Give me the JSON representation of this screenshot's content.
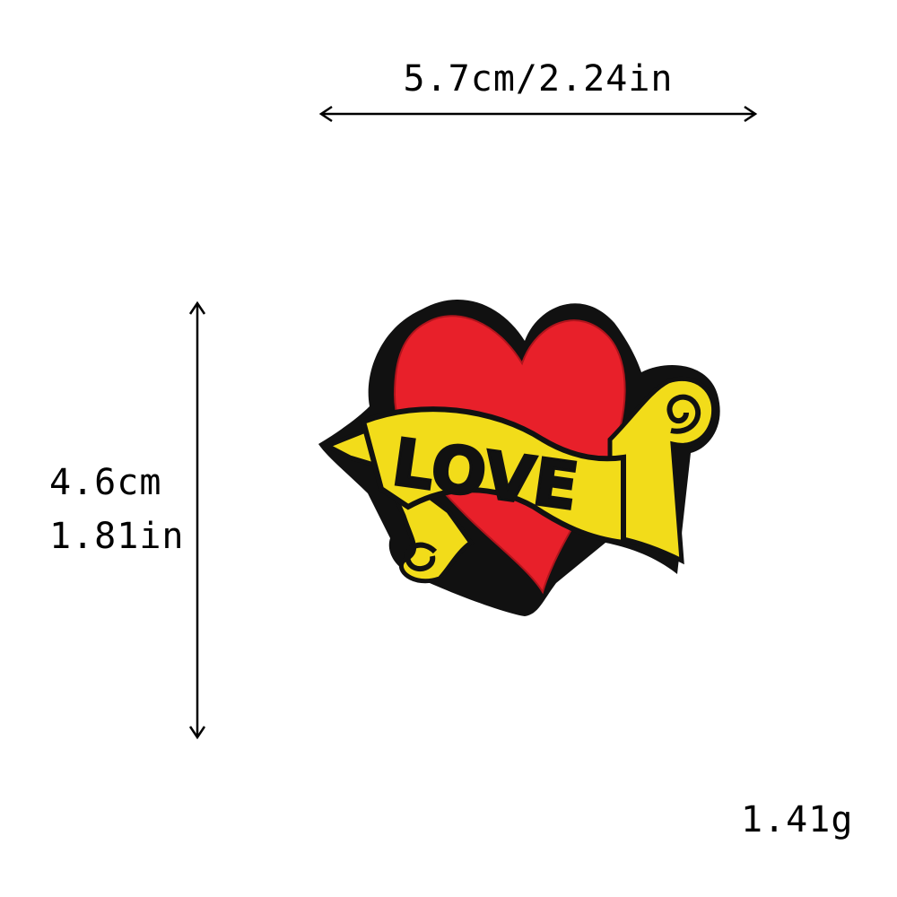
{
  "dimensions": {
    "width_label": "5.7cm/2.24in",
    "height_cm": "4.6cm",
    "height_in": "1.81in",
    "weight": "1.41g"
  },
  "patch": {
    "text": "LOVE",
    "colors": {
      "heart": "#e8202a",
      "banner": "#f2dc1a",
      "border": "#111111",
      "text": "#111111"
    }
  }
}
